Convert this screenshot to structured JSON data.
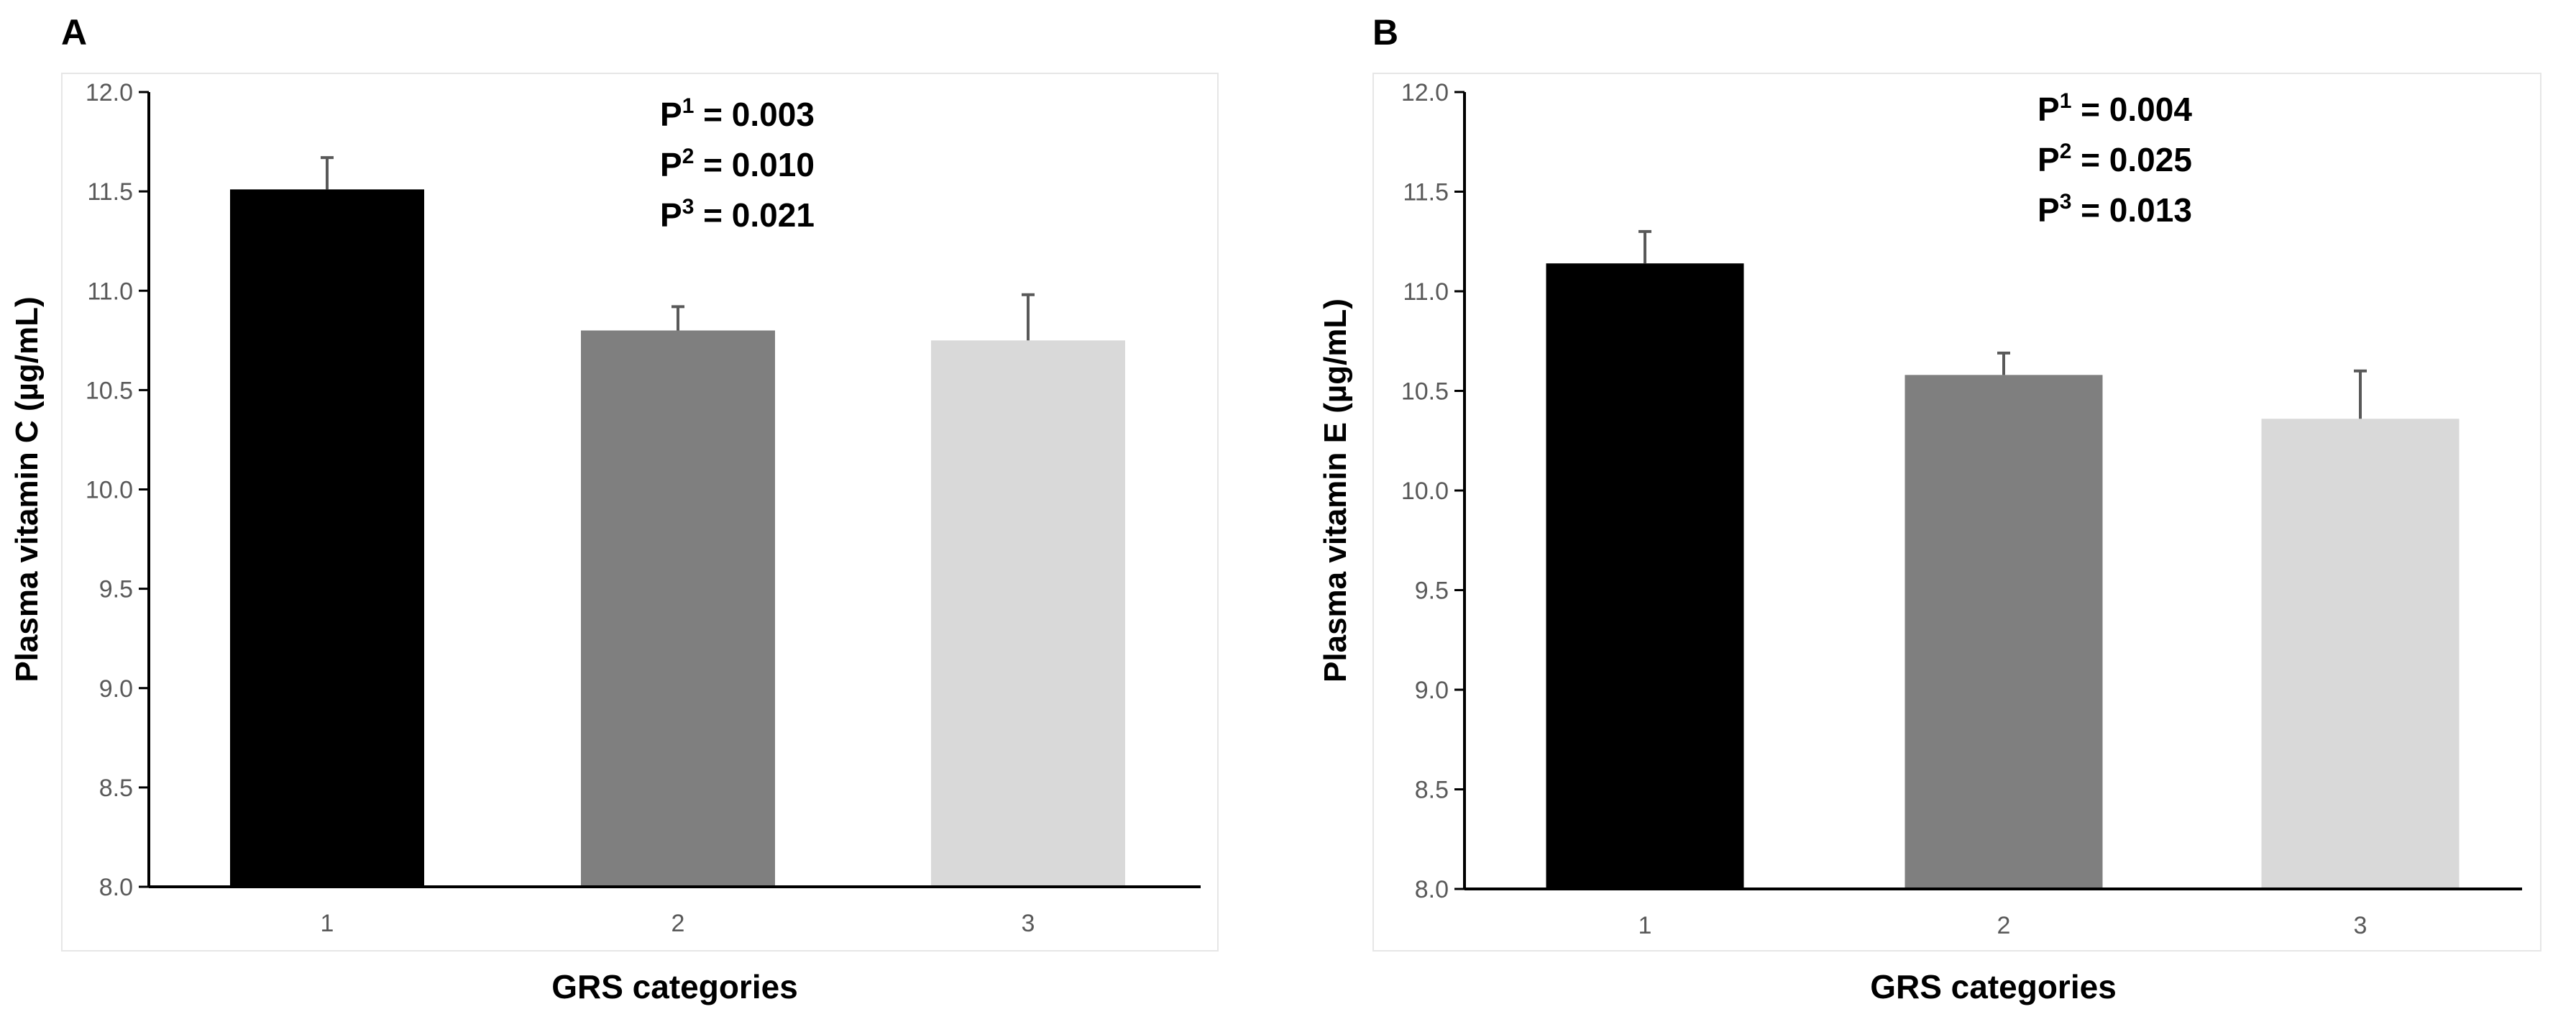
{
  "chart_data": [
    {
      "panel_label": "A",
      "type": "bar",
      "categories": [
        "1",
        "2",
        "3"
      ],
      "values": [
        11.51,
        10.8,
        10.75
      ],
      "errors": [
        0.16,
        0.12,
        0.23
      ],
      "bar_colors": [
        "#000000",
        "#7f7f7f",
        "#d9d9d9"
      ],
      "ylabel": "Plasma vitamin C (µg/mL)",
      "xlabel": "GRS categories",
      "ylim": [
        8.0,
        12.0
      ],
      "ytick_step": 0.5,
      "grid": false,
      "annotations": [
        {
          "label": "P",
          "sup": "1",
          "text": " = 0.003"
        },
        {
          "label": "P",
          "sup": "2",
          "text": " = 0.010"
        },
        {
          "label": "P",
          "sup": "3",
          "text": " = 0.021"
        }
      ]
    },
    {
      "panel_label": "B",
      "type": "bar",
      "categories": [
        "1",
        "2",
        "3"
      ],
      "values": [
        11.14,
        10.58,
        10.36
      ],
      "errors": [
        0.16,
        0.11,
        0.24
      ],
      "bar_colors": [
        "#000000",
        "#7f7f7f",
        "#d9d9d9"
      ],
      "ylabel": "Plasma vitamin E (µg/mL)",
      "xlabel": "GRS categories",
      "ylim": [
        8.0,
        12.0
      ],
      "ytick_step": 0.5,
      "grid": false,
      "annotations": [
        {
          "label": "P",
          "sup": "1",
          "text": " = 0.004"
        },
        {
          "label": "P",
          "sup": "2",
          "text": " = 0.025"
        },
        {
          "label": "P",
          "sup": "3",
          "text": " = 0.013"
        }
      ]
    }
  ]
}
